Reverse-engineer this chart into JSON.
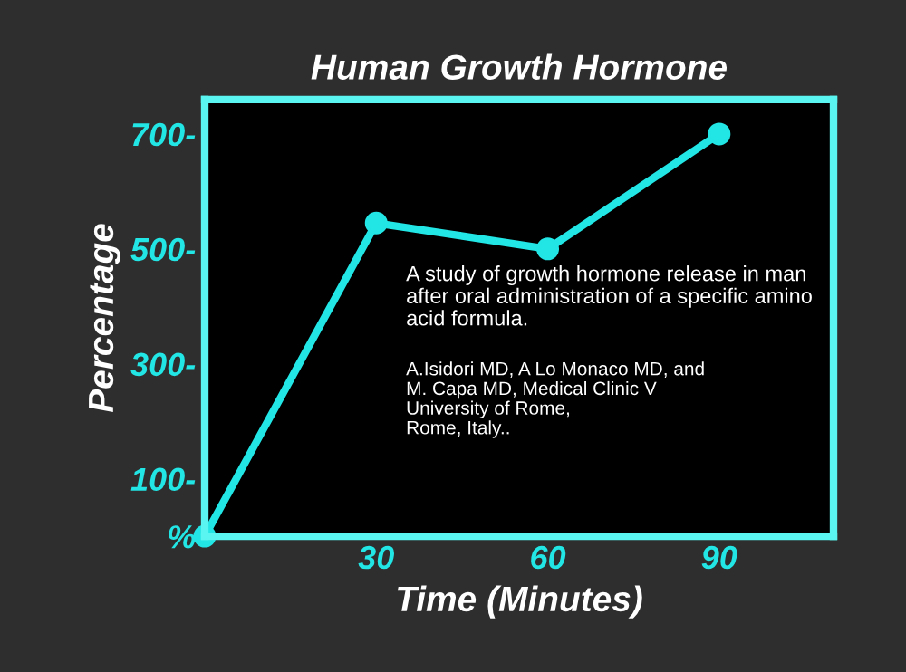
{
  "chart_data": {
    "type": "line",
    "title": "Human Growth Hormone",
    "xlabel": "Time (Minutes)",
    "ylabel": "Percentage",
    "x": [
      0,
      30,
      60,
      90
    ],
    "series": [
      {
        "color": "#22e5e5",
        "values": [
          0,
          545,
          500,
          700
        ]
      }
    ],
    "xlim": [
      0,
      110
    ],
    "xticks": [
      30,
      60,
      90
    ],
    "ylim": [
      0,
      760
    ],
    "yticks": [
      {
        "value": 0,
        "label": "%"
      },
      {
        "value": 100,
        "label": "100-"
      },
      {
        "value": 300,
        "label": "300-"
      },
      {
        "value": 500,
        "label": "500-"
      },
      {
        "value": 700,
        "label": "700-"
      }
    ],
    "marker": "circle",
    "line_style": "solid",
    "grid": false,
    "legend": false,
    "annotations": [
      "A study of growth hormone release in man\nafter oral administration of a specific amino\nacid formula.",
      "A.Isidori MD, A Lo Monaco MD, and\nM. Capa MD, Medical Clinic V\nUniversity of Rome,\nRome, Italy.."
    ]
  }
}
